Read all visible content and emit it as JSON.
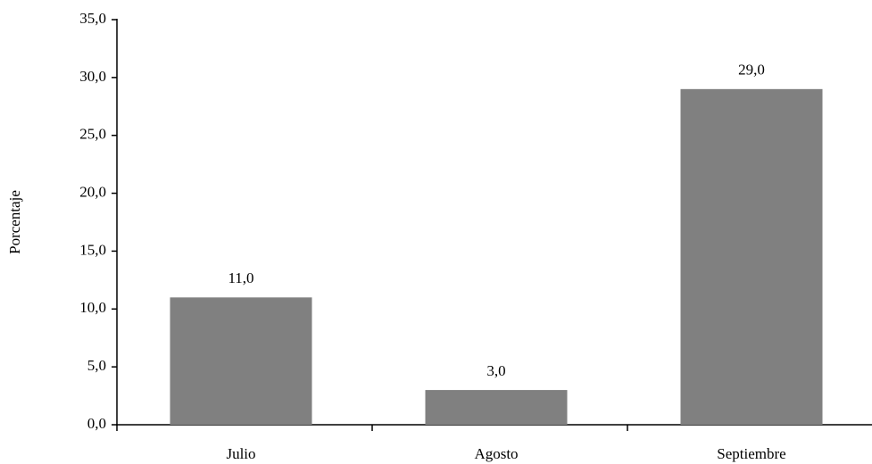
{
  "chart_data": {
    "type": "bar",
    "y_label": "Porcentaje",
    "categories": [
      "Julio",
      "Agosto",
      "Septiembre"
    ],
    "values": [
      11,
      3,
      29
    ],
    "value_labels": [
      "11,0",
      "3,0",
      "29,0"
    ],
    "color": "#808080",
    "ylim": [
      0,
      35
    ],
    "yticks": [
      {
        "value": 0,
        "label": "0,0"
      },
      {
        "value": 5,
        "label": "5,0"
      },
      {
        "value": 10,
        "label": "10,0"
      },
      {
        "value": 15,
        "label": "15,0"
      },
      {
        "value": 20,
        "label": "20,0"
      },
      {
        "value": 25,
        "label": "25,0"
      },
      {
        "value": 30,
        "label": "30,0"
      },
      {
        "value": 35,
        "label": "35,0"
      }
    ],
    "grid": false
  }
}
